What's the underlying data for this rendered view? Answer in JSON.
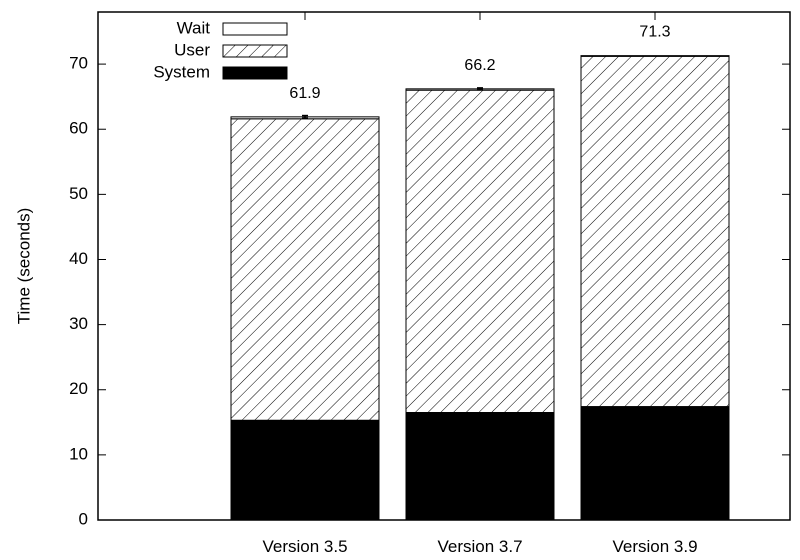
{
  "chart_data": {
    "type": "bar",
    "stacked": true,
    "categories": [
      "Version 3.5",
      "Version 3.7",
      "Version 3.9"
    ],
    "series": [
      {
        "name": "System",
        "values": [
          15.3,
          16.5,
          17.4
        ],
        "fill": "solid"
      },
      {
        "name": "User",
        "values": [
          46.3,
          49.5,
          53.8
        ],
        "fill": "hatched"
      },
      {
        "name": "Wait",
        "values": [
          0.3,
          0.2,
          0.1
        ],
        "fill": "empty"
      }
    ],
    "totals": [
      "61.9",
      "66.2",
      "71.3"
    ],
    "error": [
      0.4,
      0.3,
      0.0
    ],
    "title": "",
    "xlabel": "",
    "ylabel": "Time (seconds)",
    "ylim": [
      0,
      78
    ],
    "yticks": [
      0,
      10,
      20,
      30,
      40,
      50,
      60,
      70
    ],
    "grid": false,
    "legend_position": "top-left",
    "colors": {
      "system": "#000000",
      "hatch": "#000000",
      "background": "#ffffff"
    }
  }
}
